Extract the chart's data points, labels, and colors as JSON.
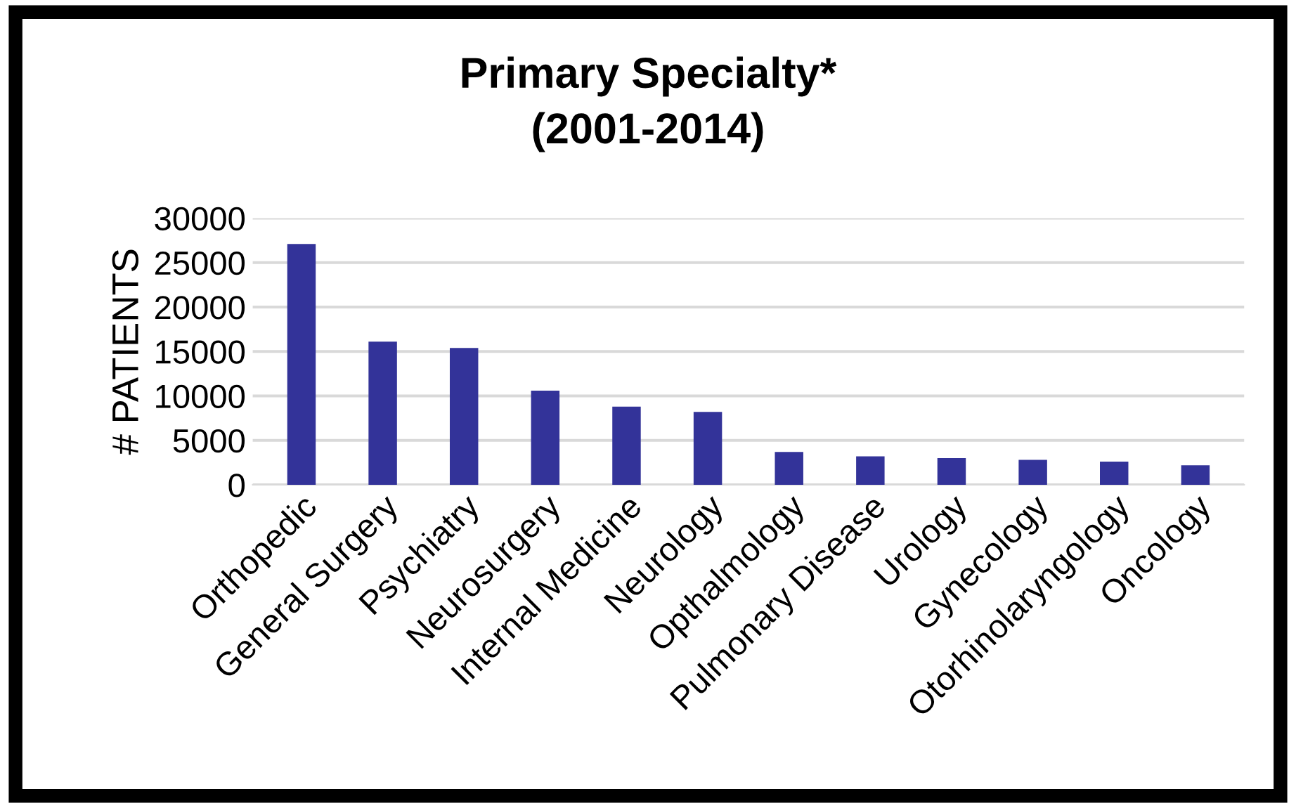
{
  "chart_data": {
    "type": "bar",
    "title": "Primary Specialty*\n(2001-2014)",
    "ylabel": "# PATIENTS",
    "categories": [
      "Orthopedic",
      "General Surgery",
      "Psychiatry",
      "Neurosurgery",
      "Internal Medicine",
      "Neurology",
      "Opthalmology",
      "Pulmonary Disease",
      "Urology",
      "Gynecology",
      "Otorhinolaryngology",
      "Oncology"
    ],
    "values": [
      27100,
      16100,
      15400,
      10600,
      8800,
      8200,
      3700,
      3200,
      3000,
      2800,
      2600,
      2200
    ],
    "color": "#333399",
    "ylim": [
      0,
      30000
    ],
    "yticks": [
      0,
      5000,
      10000,
      15000,
      20000,
      25000,
      30000
    ],
    "grid": "y"
  }
}
